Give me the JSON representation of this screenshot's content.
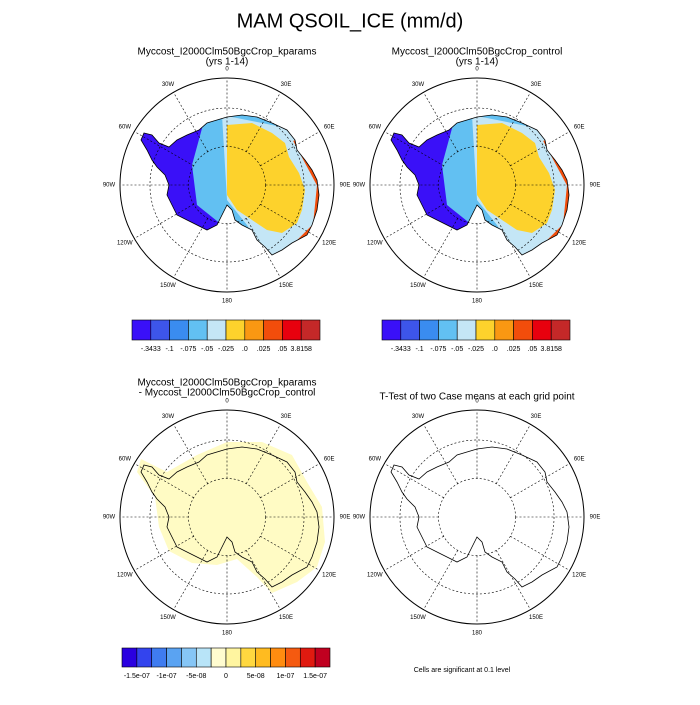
{
  "title": "MAM QSOIL_ICE (mm/d)",
  "panels": [
    {
      "title": [
        "Myccost_I2000Clm50BgcCrop_kparams",
        "(yrs 1-14)"
      ]
    },
    {
      "title": [
        "Myccost_I2000Clm50BgcCrop_control",
        "(yrs 1-14)"
      ]
    },
    {
      "title": [
        "Myccost_I2000Clm50BgcCrop_kparams",
        "- Myccost_I2000Clm50BgcCrop_control"
      ]
    },
    {
      "title": [
        "T-Test of two Case means at each grid point"
      ]
    }
  ],
  "longitude_labels": [
    "0",
    "30E",
    "60E",
    "90E",
    "120E",
    "150E",
    "180",
    "150W",
    "120W",
    "90W",
    "60W",
    "30W"
  ],
  "colorbars": [
    {
      "colors": [
        "#3a10f8",
        "#3d55ea",
        "#3a8cf0",
        "#62c0f2",
        "#c4e6f6",
        "#fdd22c",
        "#fa9812",
        "#f24d0b",
        "#e8000e",
        "#c42828"
      ],
      "labels": [
        "-.3433",
        "-.1",
        "-.075",
        "-.05",
        "-.025",
        ".0",
        ".025",
        ".05",
        "3.8158"
      ]
    },
    {
      "colors": [
        "#3a10f8",
        "#3d55ea",
        "#3a8cf0",
        "#62c0f2",
        "#c4e6f6",
        "#fdd22c",
        "#fa9812",
        "#f24d0b",
        "#e8000e",
        "#c42828"
      ],
      "labels": [
        "-.3433",
        "-.1",
        "-.075",
        "-.05",
        "-.025",
        ".0",
        ".025",
        ".05",
        "3.8158"
      ]
    },
    {
      "colors": [
        "#2a00e0",
        "#3344ee",
        "#3f7cf0",
        "#5aa3f2",
        "#86c6f6",
        "#b8e4f8",
        "#fffcd0",
        "#fff5a0",
        "#ffd840",
        "#ffbb20",
        "#ff8c10",
        "#f55a10",
        "#e01a10",
        "#c00020"
      ],
      "labels": [
        "-1.5e-07",
        "-1e-07",
        "-5e-08",
        "0",
        "5e-08",
        "1e-07",
        "1.5e-07"
      ]
    }
  ],
  "note": "Cells are significant at 0.1 level"
}
